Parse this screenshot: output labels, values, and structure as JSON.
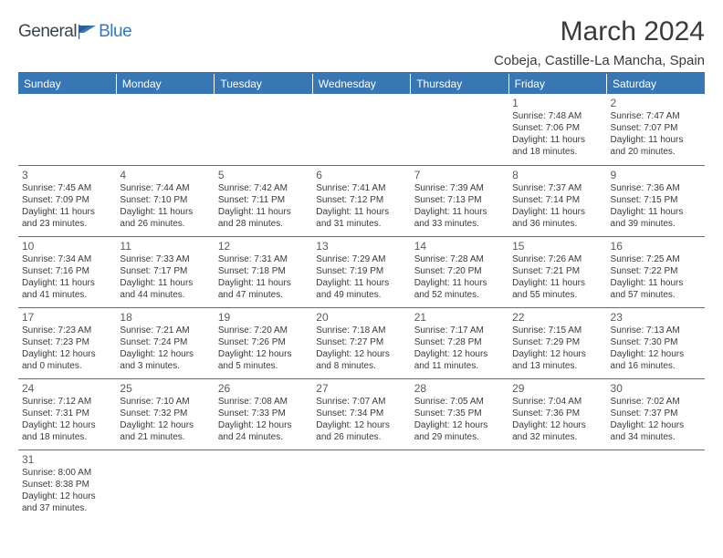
{
  "brand": {
    "part1": "General",
    "part2": "Blue"
  },
  "title": "March 2024",
  "location": "Cobeja, Castille-La Mancha, Spain",
  "colors": {
    "accent": "#3977b4",
    "text": "#3a3a3a",
    "header_bg": "#3977b4",
    "header_text": "#ffffff"
  },
  "weekdays": [
    "Sunday",
    "Monday",
    "Tuesday",
    "Wednesday",
    "Thursday",
    "Friday",
    "Saturday"
  ],
  "weeks": [
    [
      null,
      null,
      null,
      null,
      null,
      {
        "day": "1",
        "sunrise": "Sunrise: 7:48 AM",
        "sunset": "Sunset: 7:06 PM",
        "daylight1": "Daylight: 11 hours",
        "daylight2": "and 18 minutes."
      },
      {
        "day": "2",
        "sunrise": "Sunrise: 7:47 AM",
        "sunset": "Sunset: 7:07 PM",
        "daylight1": "Daylight: 11 hours",
        "daylight2": "and 20 minutes."
      }
    ],
    [
      {
        "day": "3",
        "sunrise": "Sunrise: 7:45 AM",
        "sunset": "Sunset: 7:09 PM",
        "daylight1": "Daylight: 11 hours",
        "daylight2": "and 23 minutes."
      },
      {
        "day": "4",
        "sunrise": "Sunrise: 7:44 AM",
        "sunset": "Sunset: 7:10 PM",
        "daylight1": "Daylight: 11 hours",
        "daylight2": "and 26 minutes."
      },
      {
        "day": "5",
        "sunrise": "Sunrise: 7:42 AM",
        "sunset": "Sunset: 7:11 PM",
        "daylight1": "Daylight: 11 hours",
        "daylight2": "and 28 minutes."
      },
      {
        "day": "6",
        "sunrise": "Sunrise: 7:41 AM",
        "sunset": "Sunset: 7:12 PM",
        "daylight1": "Daylight: 11 hours",
        "daylight2": "and 31 minutes."
      },
      {
        "day": "7",
        "sunrise": "Sunrise: 7:39 AM",
        "sunset": "Sunset: 7:13 PM",
        "daylight1": "Daylight: 11 hours",
        "daylight2": "and 33 minutes."
      },
      {
        "day": "8",
        "sunrise": "Sunrise: 7:37 AM",
        "sunset": "Sunset: 7:14 PM",
        "daylight1": "Daylight: 11 hours",
        "daylight2": "and 36 minutes."
      },
      {
        "day": "9",
        "sunrise": "Sunrise: 7:36 AM",
        "sunset": "Sunset: 7:15 PM",
        "daylight1": "Daylight: 11 hours",
        "daylight2": "and 39 minutes."
      }
    ],
    [
      {
        "day": "10",
        "sunrise": "Sunrise: 7:34 AM",
        "sunset": "Sunset: 7:16 PM",
        "daylight1": "Daylight: 11 hours",
        "daylight2": "and 41 minutes."
      },
      {
        "day": "11",
        "sunrise": "Sunrise: 7:33 AM",
        "sunset": "Sunset: 7:17 PM",
        "daylight1": "Daylight: 11 hours",
        "daylight2": "and 44 minutes."
      },
      {
        "day": "12",
        "sunrise": "Sunrise: 7:31 AM",
        "sunset": "Sunset: 7:18 PM",
        "daylight1": "Daylight: 11 hours",
        "daylight2": "and 47 minutes."
      },
      {
        "day": "13",
        "sunrise": "Sunrise: 7:29 AM",
        "sunset": "Sunset: 7:19 PM",
        "daylight1": "Daylight: 11 hours",
        "daylight2": "and 49 minutes."
      },
      {
        "day": "14",
        "sunrise": "Sunrise: 7:28 AM",
        "sunset": "Sunset: 7:20 PM",
        "daylight1": "Daylight: 11 hours",
        "daylight2": "and 52 minutes."
      },
      {
        "day": "15",
        "sunrise": "Sunrise: 7:26 AM",
        "sunset": "Sunset: 7:21 PM",
        "daylight1": "Daylight: 11 hours",
        "daylight2": "and 55 minutes."
      },
      {
        "day": "16",
        "sunrise": "Sunrise: 7:25 AM",
        "sunset": "Sunset: 7:22 PM",
        "daylight1": "Daylight: 11 hours",
        "daylight2": "and 57 minutes."
      }
    ],
    [
      {
        "day": "17",
        "sunrise": "Sunrise: 7:23 AM",
        "sunset": "Sunset: 7:23 PM",
        "daylight1": "Daylight: 12 hours",
        "daylight2": "and 0 minutes."
      },
      {
        "day": "18",
        "sunrise": "Sunrise: 7:21 AM",
        "sunset": "Sunset: 7:24 PM",
        "daylight1": "Daylight: 12 hours",
        "daylight2": "and 3 minutes."
      },
      {
        "day": "19",
        "sunrise": "Sunrise: 7:20 AM",
        "sunset": "Sunset: 7:26 PM",
        "daylight1": "Daylight: 12 hours",
        "daylight2": "and 5 minutes."
      },
      {
        "day": "20",
        "sunrise": "Sunrise: 7:18 AM",
        "sunset": "Sunset: 7:27 PM",
        "daylight1": "Daylight: 12 hours",
        "daylight2": "and 8 minutes."
      },
      {
        "day": "21",
        "sunrise": "Sunrise: 7:17 AM",
        "sunset": "Sunset: 7:28 PM",
        "daylight1": "Daylight: 12 hours",
        "daylight2": "and 11 minutes."
      },
      {
        "day": "22",
        "sunrise": "Sunrise: 7:15 AM",
        "sunset": "Sunset: 7:29 PM",
        "daylight1": "Daylight: 12 hours",
        "daylight2": "and 13 minutes."
      },
      {
        "day": "23",
        "sunrise": "Sunrise: 7:13 AM",
        "sunset": "Sunset: 7:30 PM",
        "daylight1": "Daylight: 12 hours",
        "daylight2": "and 16 minutes."
      }
    ],
    [
      {
        "day": "24",
        "sunrise": "Sunrise: 7:12 AM",
        "sunset": "Sunset: 7:31 PM",
        "daylight1": "Daylight: 12 hours",
        "daylight2": "and 18 minutes."
      },
      {
        "day": "25",
        "sunrise": "Sunrise: 7:10 AM",
        "sunset": "Sunset: 7:32 PM",
        "daylight1": "Daylight: 12 hours",
        "daylight2": "and 21 minutes."
      },
      {
        "day": "26",
        "sunrise": "Sunrise: 7:08 AM",
        "sunset": "Sunset: 7:33 PM",
        "daylight1": "Daylight: 12 hours",
        "daylight2": "and 24 minutes."
      },
      {
        "day": "27",
        "sunrise": "Sunrise: 7:07 AM",
        "sunset": "Sunset: 7:34 PM",
        "daylight1": "Daylight: 12 hours",
        "daylight2": "and 26 minutes."
      },
      {
        "day": "28",
        "sunrise": "Sunrise: 7:05 AM",
        "sunset": "Sunset: 7:35 PM",
        "daylight1": "Daylight: 12 hours",
        "daylight2": "and 29 minutes."
      },
      {
        "day": "29",
        "sunrise": "Sunrise: 7:04 AM",
        "sunset": "Sunset: 7:36 PM",
        "daylight1": "Daylight: 12 hours",
        "daylight2": "and 32 minutes."
      },
      {
        "day": "30",
        "sunrise": "Sunrise: 7:02 AM",
        "sunset": "Sunset: 7:37 PM",
        "daylight1": "Daylight: 12 hours",
        "daylight2": "and 34 minutes."
      }
    ],
    [
      {
        "day": "31",
        "sunrise": "Sunrise: 8:00 AM",
        "sunset": "Sunset: 8:38 PM",
        "daylight1": "Daylight: 12 hours",
        "daylight2": "and 37 minutes."
      },
      null,
      null,
      null,
      null,
      null,
      null
    ]
  ]
}
